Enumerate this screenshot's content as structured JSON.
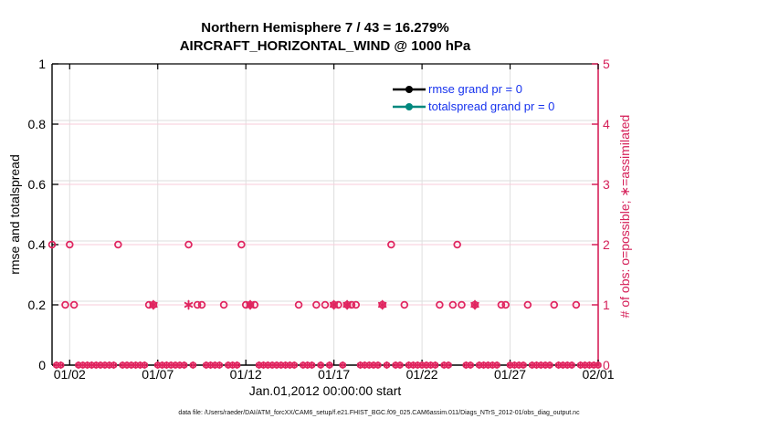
{
  "chart_data": {
    "type": "scatter",
    "title_line1": "Northern Hemisphere 7 / 43 = 16.279%",
    "title_line2": "AIRCRAFT_HORIZONTAL_WIND @ 1000 hPa",
    "xlabel": "Jan.01,2012 00:00:00 start",
    "ylabel_left": "rmse and totalspread",
    "ylabel_right": "# of obs: o=possible; ∗=assimilated",
    "x_axis": {
      "range_days": [
        1,
        32
      ],
      "ticks": [
        {
          "day": 2,
          "label": "01/02"
        },
        {
          "day": 7,
          "label": "01/07"
        },
        {
          "day": 12,
          "label": "01/12"
        },
        {
          "day": 17,
          "label": "01/17"
        },
        {
          "day": 22,
          "label": "01/22"
        },
        {
          "day": 27,
          "label": "01/27"
        },
        {
          "day": 32,
          "label": "02/01"
        }
      ]
    },
    "y_left_axis": {
      "range": [
        0,
        1
      ],
      "ticks": [
        0,
        0.2,
        0.4,
        0.6,
        0.8,
        1
      ]
    },
    "y_right_axis": {
      "range": [
        0,
        5
      ],
      "ticks": [
        0,
        1,
        2,
        3,
        4,
        5
      ]
    },
    "legend": [
      {
        "label": "rmse grand pr = 0",
        "color": "#000000",
        "marker": "filled-circle-line"
      },
      {
        "label": "totalspread grand pr = 0",
        "color": "#00887E",
        "marker": "filled-circle-line"
      }
    ],
    "series": {
      "possible_marker": "circle",
      "assimilated_marker": "asterisk",
      "possible_count2_days": [
        1.0,
        2.0,
        4.75,
        8.75,
        11.75,
        20.25,
        24.0
      ],
      "possible_count1_days": [
        1.75,
        2.25,
        6.5,
        6.75,
        9.25,
        9.5,
        10.75,
        12.0,
        12.25,
        12.5,
        15.0,
        16.0,
        16.5,
        17.0,
        17.25,
        17.75,
        18.0,
        18.25,
        19.75,
        21.0,
        23.0,
        23.75,
        24.25,
        25.0,
        26.5,
        26.75,
        28.0,
        29.5,
        30.75
      ],
      "assimilated_count1_days": [
        6.75,
        8.75,
        12.25,
        17.0,
        17.75,
        19.75,
        25.0
      ],
      "zero_count_step_days": 0.25
    },
    "colors": {
      "obs": "#E0245F",
      "right_axis": "#D52059",
      "legend_text": "#1733EE",
      "grid": "#DEDEDE",
      "count_guide": "#F7CBD9"
    }
  },
  "footer": {
    "data_file": "data file: /Users/raeder/DAI/ATM_forcXX/CAM6_setup/f.e21.FHIST_BGC.f09_025.CAM6assim.011/Diags_NTrS_2012-01/obs_diag_output.nc"
  }
}
